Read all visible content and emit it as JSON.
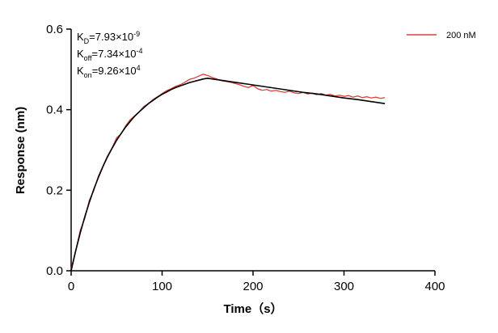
{
  "chart_data": {
    "type": "line",
    "xlabel": "Time（s）",
    "ylabel": "Response (nm)",
    "annotations": [
      {
        "symbol": "K",
        "subscript": "D",
        "text": "=7.93×10",
        "exponent": "-9"
      },
      {
        "symbol": "K",
        "subscript": "off",
        "text": "=7.34×10",
        "exponent": "-4"
      },
      {
        "symbol": "K",
        "subscript": "on",
        "text": "=9.26×10",
        "exponent": "4"
      }
    ],
    "xlim": [
      0,
      400
    ],
    "xticks": [
      0,
      100,
      200,
      300,
      400
    ],
    "ylim": [
      0,
      0.6
    ],
    "yticks": [
      {
        "value": 0,
        "label": "0.0"
      },
      0.2,
      0.4,
      0.6
    ],
    "legend": "upper right",
    "series": [
      {
        "name": "200 nM",
        "color": "#d9413a",
        "x": [
          0,
          5,
          10,
          15,
          20,
          25,
          30,
          35,
          40,
          45,
          50,
          55,
          60,
          65,
          70,
          75,
          80,
          85,
          90,
          95,
          100,
          105,
          110,
          115,
          120,
          125,
          130,
          135,
          140,
          145,
          150,
          155,
          160,
          165,
          170,
          175,
          180,
          185,
          190,
          195,
          200,
          205,
          210,
          215,
          220,
          225,
          230,
          235,
          240,
          245,
          250,
          255,
          260,
          265,
          270,
          275,
          280,
          285,
          290,
          295,
          300,
          305,
          310,
          315,
          320,
          325,
          330,
          335,
          340,
          345
        ],
        "values": [
          0.005,
          0.05,
          0.1,
          0.13,
          0.175,
          0.2,
          0.235,
          0.26,
          0.285,
          0.305,
          0.33,
          0.34,
          0.36,
          0.375,
          0.385,
          0.395,
          0.408,
          0.415,
          0.425,
          0.432,
          0.44,
          0.447,
          0.452,
          0.458,
          0.462,
          0.468,
          0.475,
          0.478,
          0.483,
          0.488,
          0.485,
          0.48,
          0.476,
          0.472,
          0.47,
          0.468,
          0.465,
          0.462,
          0.458,
          0.455,
          0.46,
          0.452,
          0.448,
          0.45,
          0.446,
          0.448,
          0.445,
          0.443,
          0.446,
          0.442,
          0.44,
          0.443,
          0.439,
          0.441,
          0.437,
          0.44,
          0.436,
          0.438,
          0.434,
          0.436,
          0.433,
          0.435,
          0.431,
          0.434,
          0.43,
          0.432,
          0.429,
          0.431,
          0.428,
          0.43
        ]
      },
      {
        "color": "#000000",
        "x": [
          0,
          5,
          10,
          15,
          20,
          25,
          30,
          35,
          40,
          45,
          50,
          55,
          60,
          65,
          70,
          75,
          80,
          85,
          90,
          95,
          100,
          105,
          110,
          115,
          120,
          125,
          130,
          135,
          140,
          145,
          150,
          165,
          180,
          195,
          210,
          225,
          240,
          255,
          270,
          285,
          300,
          315,
          330,
          345
        ],
        "values": [
          0,
          0.0495,
          0.094,
          0.134,
          0.17,
          0.203,
          0.232,
          0.259,
          0.283,
          0.304,
          0.324,
          0.341,
          0.357,
          0.371,
          0.384,
          0.395,
          0.405,
          0.415,
          0.423,
          0.431,
          0.438,
          0.444,
          0.45,
          0.455,
          0.459,
          0.463,
          0.467,
          0.47,
          0.473,
          0.476,
          0.478,
          0.473,
          0.468,
          0.463,
          0.458,
          0.453,
          0.448,
          0.443,
          0.439,
          0.434,
          0.429,
          0.425,
          0.42,
          0.415
        ]
      }
    ]
  }
}
